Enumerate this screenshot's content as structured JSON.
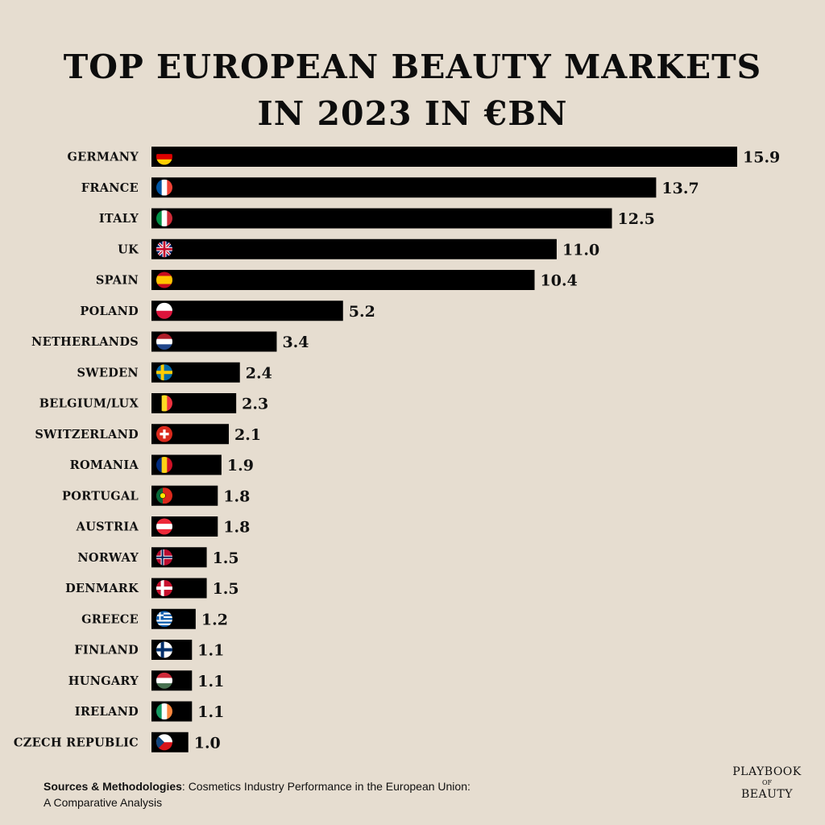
{
  "title": {
    "line1": "TOP EUROPEAN BEAUTY MARKETS",
    "line2": "IN 2023 IN €BN"
  },
  "chart_data": {
    "type": "bar",
    "orientation": "horizontal",
    "categories": [
      "GERMANY",
      "FRANCE",
      "ITALY",
      "UK",
      "SPAIN",
      "POLAND",
      "NETHERLANDS",
      "SWEDEN",
      "BELGIUM/LUX",
      "SWITZERLAND",
      "ROMANIA",
      "PORTUGAL",
      "AUSTRIA",
      "NORWAY",
      "DENMARK",
      "GREECE",
      "FINLAND",
      "HUNGARY",
      "IRELAND",
      "CZECH REPUBLIC"
    ],
    "values": [
      15.9,
      13.7,
      12.5,
      11.0,
      10.4,
      5.2,
      3.4,
      2.4,
      2.3,
      2.1,
      1.9,
      1.8,
      1.8,
      1.5,
      1.5,
      1.2,
      1.1,
      1.1,
      1.1,
      1.0
    ],
    "value_labels": [
      "15.9",
      "13.7",
      "12.5",
      "11.0",
      "10.4",
      "5.2",
      "3.4",
      "2.4",
      "2.3",
      "2.1",
      "1.9",
      "1.8",
      "1.8",
      "1.5",
      "1.5",
      "1.2",
      "1.1",
      "1.1",
      "1.1",
      "1.0"
    ],
    "flags": [
      "germany-flag-icon",
      "france-flag-icon",
      "italy-flag-icon",
      "uk-flag-icon",
      "spain-flag-icon",
      "poland-flag-icon",
      "netherlands-flag-icon",
      "sweden-flag-icon",
      "belgium-flag-icon",
      "switzerland-flag-icon",
      "romania-flag-icon",
      "portugal-flag-icon",
      "austria-flag-icon",
      "norway-flag-icon",
      "denmark-flag-icon",
      "greece-flag-icon",
      "finland-flag-icon",
      "hungary-flag-icon",
      "ireland-flag-icon",
      "czech-flag-icon"
    ],
    "bar_color": "#000000",
    "background": "#e6ddd0",
    "xlim": [
      0,
      15.9
    ],
    "grid": false,
    "legend": "none"
  },
  "source": {
    "label": "Sources & Methodologies",
    "line1": ": Cosmetics Industry Performance in the European Union:",
    "line2": "A Comparative Analysis"
  },
  "logo": {
    "top": "PLAYBOOK",
    "middle": "OF",
    "bottom": "BEAUTY"
  }
}
